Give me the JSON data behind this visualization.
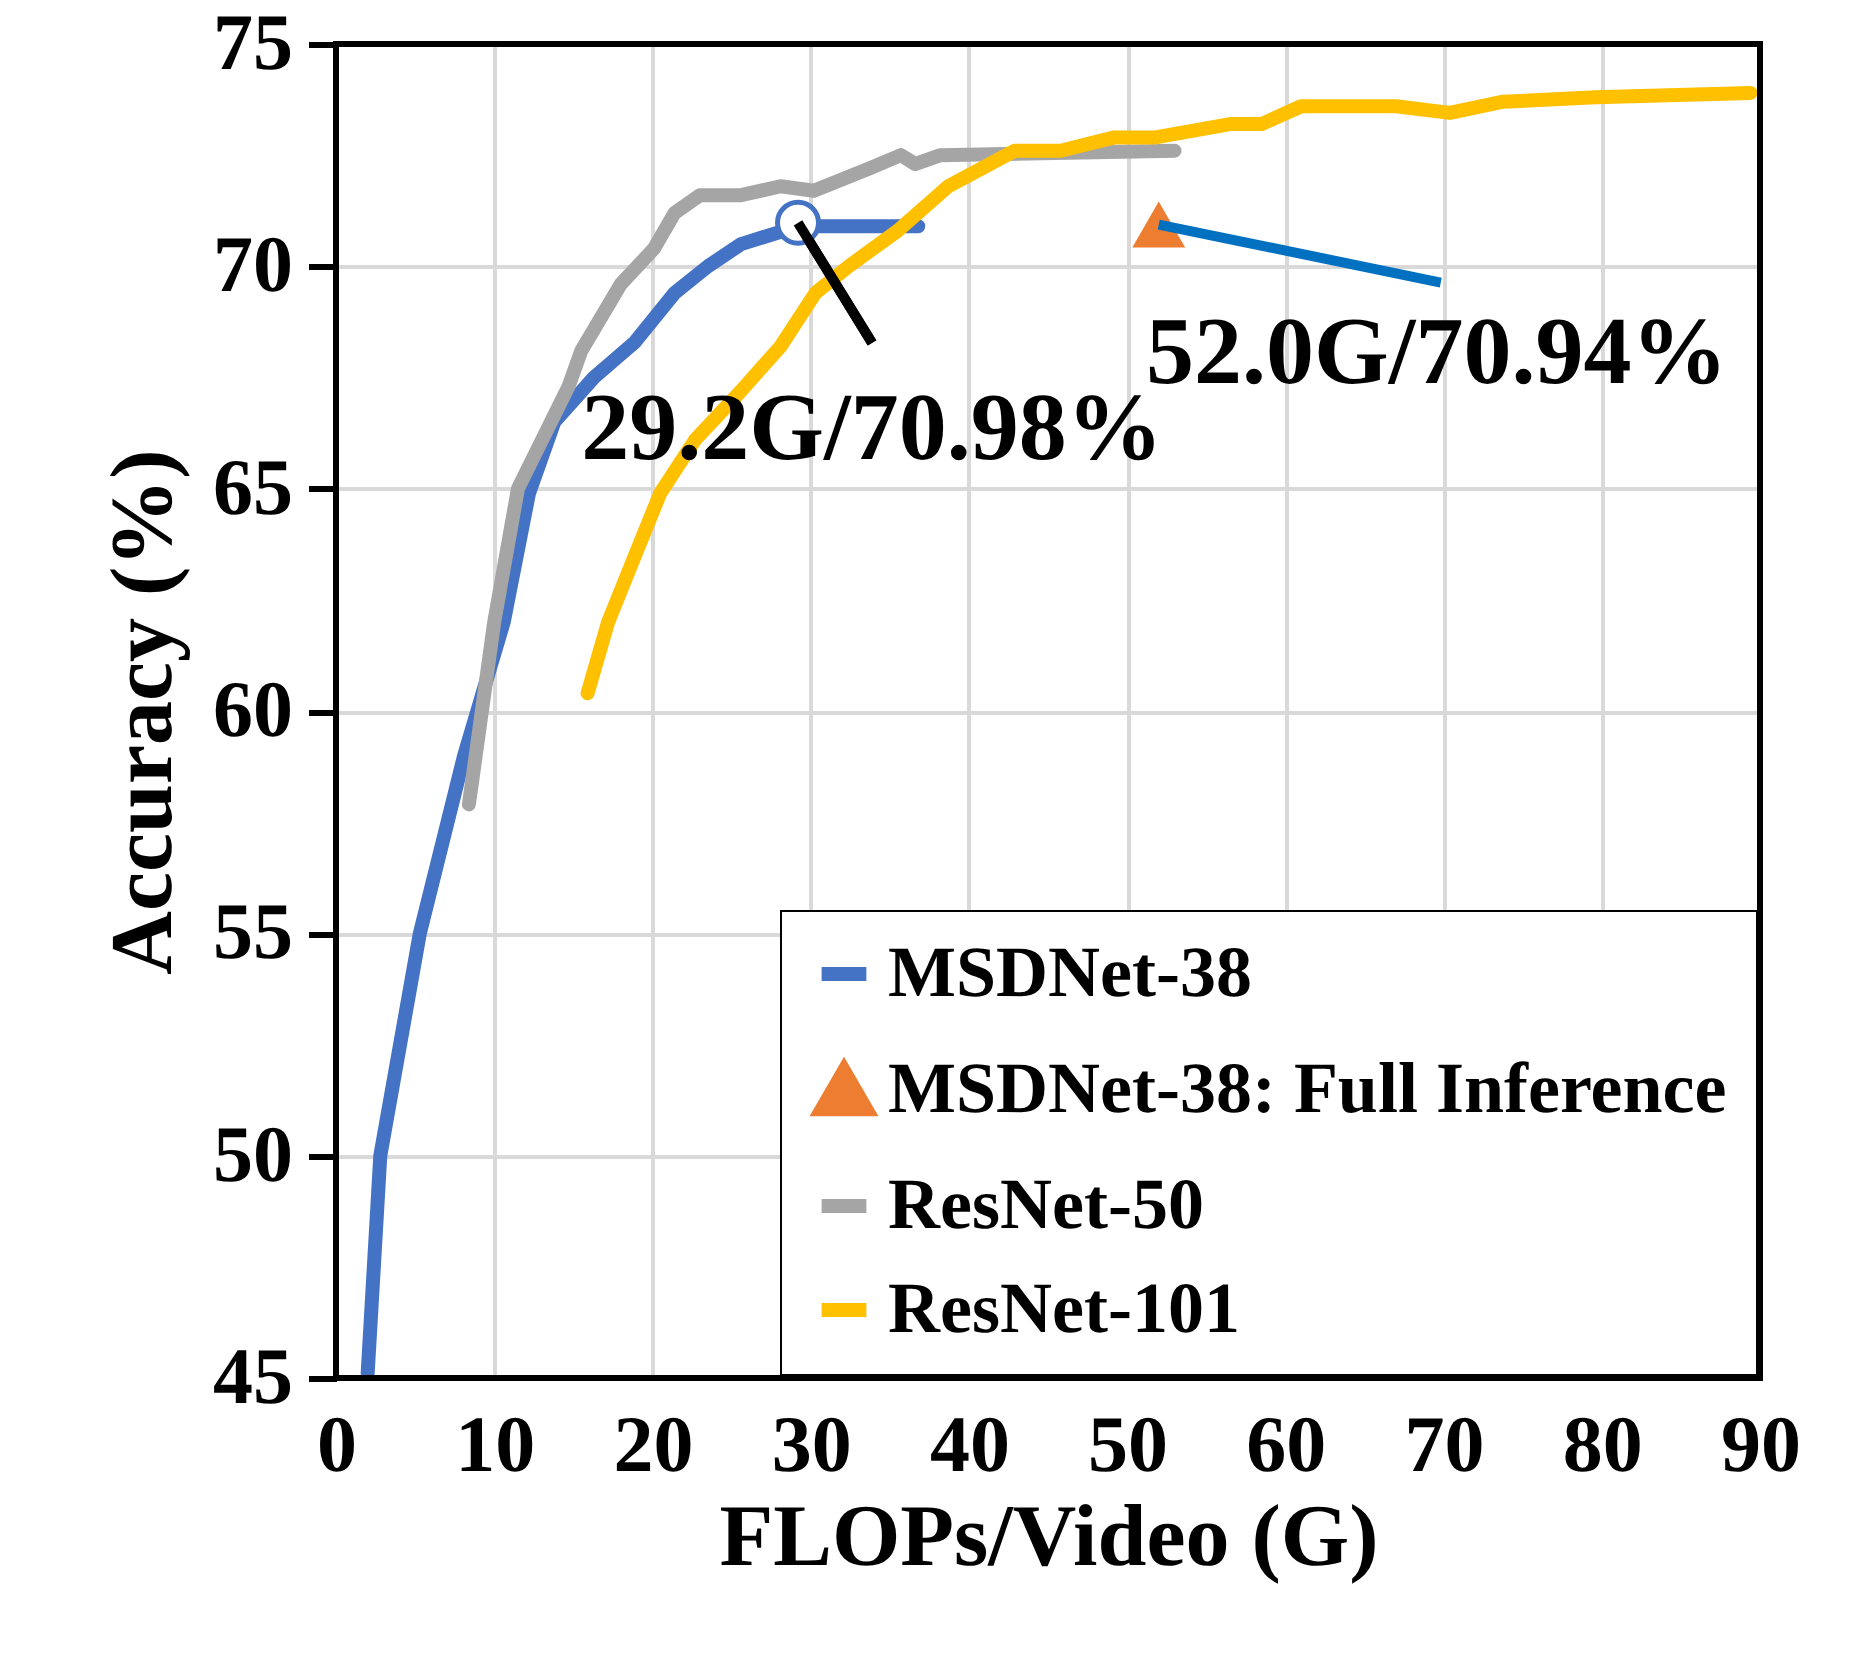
{
  "chart_data": {
    "type": "line",
    "xlabel": "FLOPs/Video (G)",
    "ylabel": "Accuracy (%)",
    "xlim": [
      0,
      90
    ],
    "xticks": [
      0,
      10,
      20,
      30,
      40,
      50,
      60,
      70,
      80,
      90
    ],
    "ylim": [
      45,
      75
    ],
    "yticks": [
      45,
      50,
      55,
      60,
      65,
      70,
      75
    ],
    "grid": true,
    "legend": "bottom right",
    "line_style": "solid",
    "series": [
      {
        "name": "MSDNet-38",
        "color": "#4472c4",
        "x": [
          2.0,
          2.8,
          5.3,
          8.1,
          10.6,
          12.2,
          13.8,
          16.3,
          18.9,
          21.4,
          23.5,
          25.6,
          29.2,
          36.8
        ],
        "values": [
          45.1,
          50.0,
          55.0,
          59.0,
          62.0,
          64.9,
          66.5,
          67.5,
          68.3,
          69.4,
          70.0,
          70.5,
          70.9,
          70.9
        ]
      },
      {
        "name": "MSDNet-38: Full Inference",
        "color": "#ed7d31",
        "type": "scatter",
        "marker": "triangle",
        "x": [
          52.0
        ],
        "values": [
          70.94
        ]
      },
      {
        "name": "ResNet-50",
        "color": "#a5a5a5",
        "x": [
          8.4,
          10.0,
          11.5,
          14.7,
          15.5,
          18.0,
          20.1,
          21.4,
          23.0,
          25.6,
          28.1,
          30.2,
          33.7,
          35.7,
          36.6,
          38.2,
          53.0
        ],
        "values": [
          57.9,
          62.0,
          65.0,
          67.3,
          68.1,
          69.6,
          70.4,
          71.2,
          71.6,
          71.6,
          71.8,
          71.7,
          72.2,
          72.5,
          72.3,
          72.5,
          72.6
        ]
      },
      {
        "name": "ResNet-101",
        "color": "#ffc000",
        "x": [
          15.9,
          17.2,
          18.9,
          20.5,
          22.7,
          25.6,
          28.1,
          30.3,
          32.4,
          35.5,
          38.7,
          42.9,
          45.8,
          49.2,
          51.8,
          56.5,
          58.5,
          61.0,
          67.0,
          70.4,
          73.7,
          79.6,
          89.4
        ],
        "values": [
          60.4,
          62.0,
          63.5,
          64.9,
          66.1,
          67.2,
          68.2,
          69.4,
          70.0,
          70.8,
          71.8,
          72.6,
          72.6,
          72.9,
          72.9,
          73.2,
          73.2,
          73.6,
          73.6,
          73.45,
          73.7,
          73.8,
          73.9
        ]
      }
    ],
    "annotations": [
      {
        "text": "29.2G/70.98%",
        "x": 29.2,
        "y": 70.98
      },
      {
        "text": "52.0G/70.94%",
        "x": 52.0,
        "y": 70.94
      }
    ]
  }
}
